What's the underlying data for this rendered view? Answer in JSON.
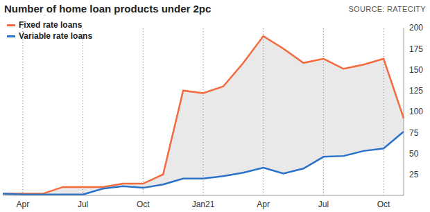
{
  "chart_data": {
    "type": "line",
    "title": "Number of home loan products under 2pc",
    "source": "SOURCE: RATECITY",
    "categories": [
      null,
      "Apr",
      null,
      null,
      "Jul",
      null,
      null,
      "Oct",
      null,
      null,
      "Jan21",
      null,
      null,
      "Apr",
      null,
      null,
      "Jul",
      null,
      null,
      "Oct",
      null
    ],
    "series": [
      {
        "name": "Fixed rate loans",
        "color": "#f26a3d",
        "values": [
          2,
          2,
          2,
          10,
          10,
          10,
          14,
          14,
          25,
          125,
          122,
          130,
          158,
          190,
          175,
          158,
          163,
          151,
          156,
          163,
          92
        ]
      },
      {
        "name": "Variable rate loans",
        "color": "#2a72c9",
        "values": [
          2,
          1,
          1,
          1,
          1,
          8,
          11,
          9,
          13,
          20,
          20,
          23,
          27,
          33,
          26,
          32,
          46,
          47,
          53,
          56,
          76
        ]
      }
    ],
    "ylim": [
      0,
      200
    ],
    "yticks": [
      25,
      50,
      75,
      100,
      125,
      150,
      175,
      200
    ],
    "grid": true,
    "legend": "top-left"
  }
}
